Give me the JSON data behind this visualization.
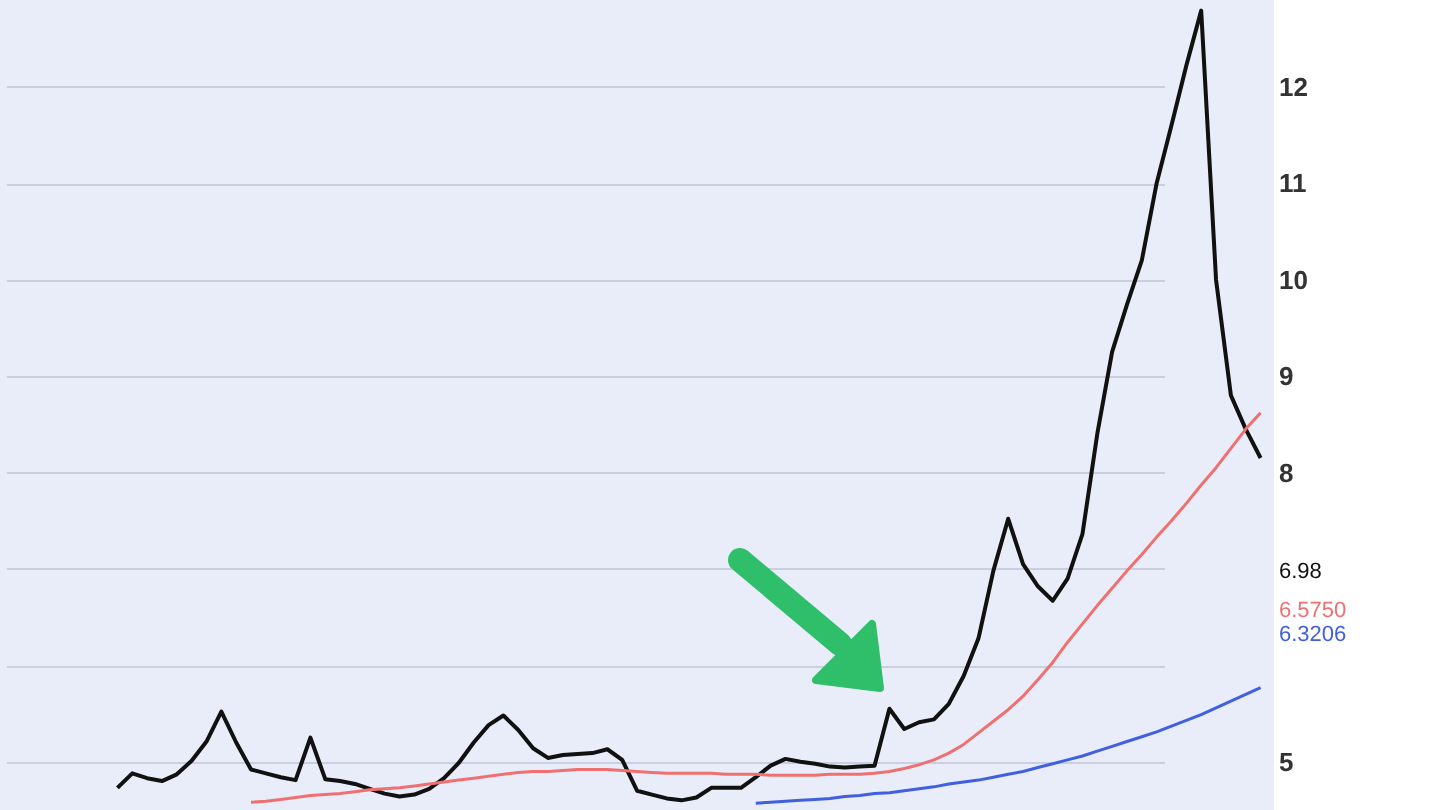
{
  "chart_data": {
    "type": "line",
    "grid": true,
    "categories": [
      null,
      null,
      null,
      null,
      null,
      null,
      null,
      null,
      null,
      null,
      null,
      null,
      null,
      null,
      null,
      null,
      null,
      null,
      null,
      null,
      null,
      null,
      null,
      null,
      null,
      null,
      null,
      null,
      null,
      null,
      null,
      null,
      null,
      null,
      null,
      null,
      null,
      null,
      null,
      null,
      null,
      null,
      null,
      null,
      null,
      null,
      null,
      null,
      null,
      null,
      null,
      null,
      null,
      null,
      null,
      null,
      null,
      null,
      null,
      null,
      null,
      null,
      null,
      null,
      null,
      null,
      null,
      null,
      null,
      null,
      null,
      null,
      null,
      null,
      null,
      null,
      null,
      null
    ],
    "ylim": [
      4.5,
      12.9
    ],
    "yticks": [
      5,
      {
        "value": 6,
        "label": null
      },
      6.3206,
      {
        "value": 6.575,
        "label": "6.5750"
      },
      {
        "value": 7,
        "label": null
      },
      6.98,
      8,
      9,
      10,
      11,
      12
    ],
    "series": [
      {
        "color": "#111111",
        "values": [
          4.73,
          4.88,
          4.83,
          4.8,
          4.87,
          5.01,
          5.21,
          5.52,
          5.2,
          4.92,
          4.88,
          4.84,
          4.81,
          5.25,
          4.82,
          4.8,
          4.77,
          4.72,
          4.67,
          4.64,
          4.66,
          4.72,
          4.83,
          4.99,
          5.2,
          5.38,
          5.48,
          5.33,
          5.14,
          5.04,
          5.07,
          5.08,
          5.09,
          5.13,
          5.02,
          4.7,
          4.66,
          4.62,
          4.6,
          4.63,
          4.73,
          4.73,
          4.73,
          4.84,
          4.96,
          5.03,
          5.0,
          4.98,
          4.95,
          4.94,
          4.95,
          4.96,
          5.55,
          5.34,
          5.41,
          5.44,
          5.6,
          5.89,
          6.28,
          6.98,
          7.52,
          7.05,
          6.82,
          6.67,
          6.9,
          7.36,
          8.4,
          9.25,
          9.74,
          10.2,
          11.0,
          11.6,
          12.22,
          12.79,
          10.0,
          8.8,
          8.45,
          8.15
        ]
      },
      {
        "color": "#f07070",
        "values": [
          null,
          null,
          null,
          null,
          null,
          null,
          null,
          null,
          null,
          4.58,
          4.59,
          4.61,
          4.63,
          4.65,
          4.66,
          4.67,
          4.69,
          4.71,
          4.72,
          4.73,
          4.75,
          4.77,
          4.79,
          4.81,
          4.83,
          4.85,
          4.87,
          4.89,
          4.9,
          4.9,
          4.91,
          4.92,
          4.92,
          4.92,
          4.91,
          4.9,
          4.89,
          4.88,
          4.88,
          4.88,
          4.88,
          4.87,
          4.87,
          4.87,
          4.86,
          4.86,
          4.86,
          4.86,
          4.87,
          4.87,
          4.87,
          4.88,
          4.9,
          4.93,
          4.97,
          5.02,
          5.09,
          5.18,
          5.3,
          5.42,
          5.54,
          5.68,
          5.85,
          6.03,
          6.24,
          6.43,
          6.62,
          6.8,
          6.98,
          7.15,
          7.33,
          7.5,
          7.68,
          7.87,
          8.05,
          8.25,
          8.45,
          8.62
        ]
      },
      {
        "color": "#4060e0",
        "values": [
          null,
          null,
          null,
          null,
          null,
          null,
          null,
          null,
          null,
          null,
          null,
          null,
          null,
          null,
          null,
          null,
          null,
          null,
          null,
          null,
          null,
          null,
          null,
          null,
          null,
          null,
          null,
          null,
          null,
          null,
          null,
          null,
          null,
          null,
          null,
          null,
          null,
          null,
          null,
          null,
          null,
          null,
          null,
          4.57,
          4.58,
          4.59,
          4.6,
          4.61,
          4.62,
          4.64,
          4.65,
          4.67,
          4.68,
          4.7,
          4.72,
          4.74,
          4.77,
          4.79,
          4.81,
          4.84,
          4.87,
          4.9,
          4.94,
          4.98,
          5.02,
          5.06,
          5.11,
          5.16,
          5.21,
          5.26,
          5.31,
          5.37,
          5.43,
          5.49,
          5.56,
          5.63,
          5.7,
          5.77
        ]
      }
    ]
  }
}
